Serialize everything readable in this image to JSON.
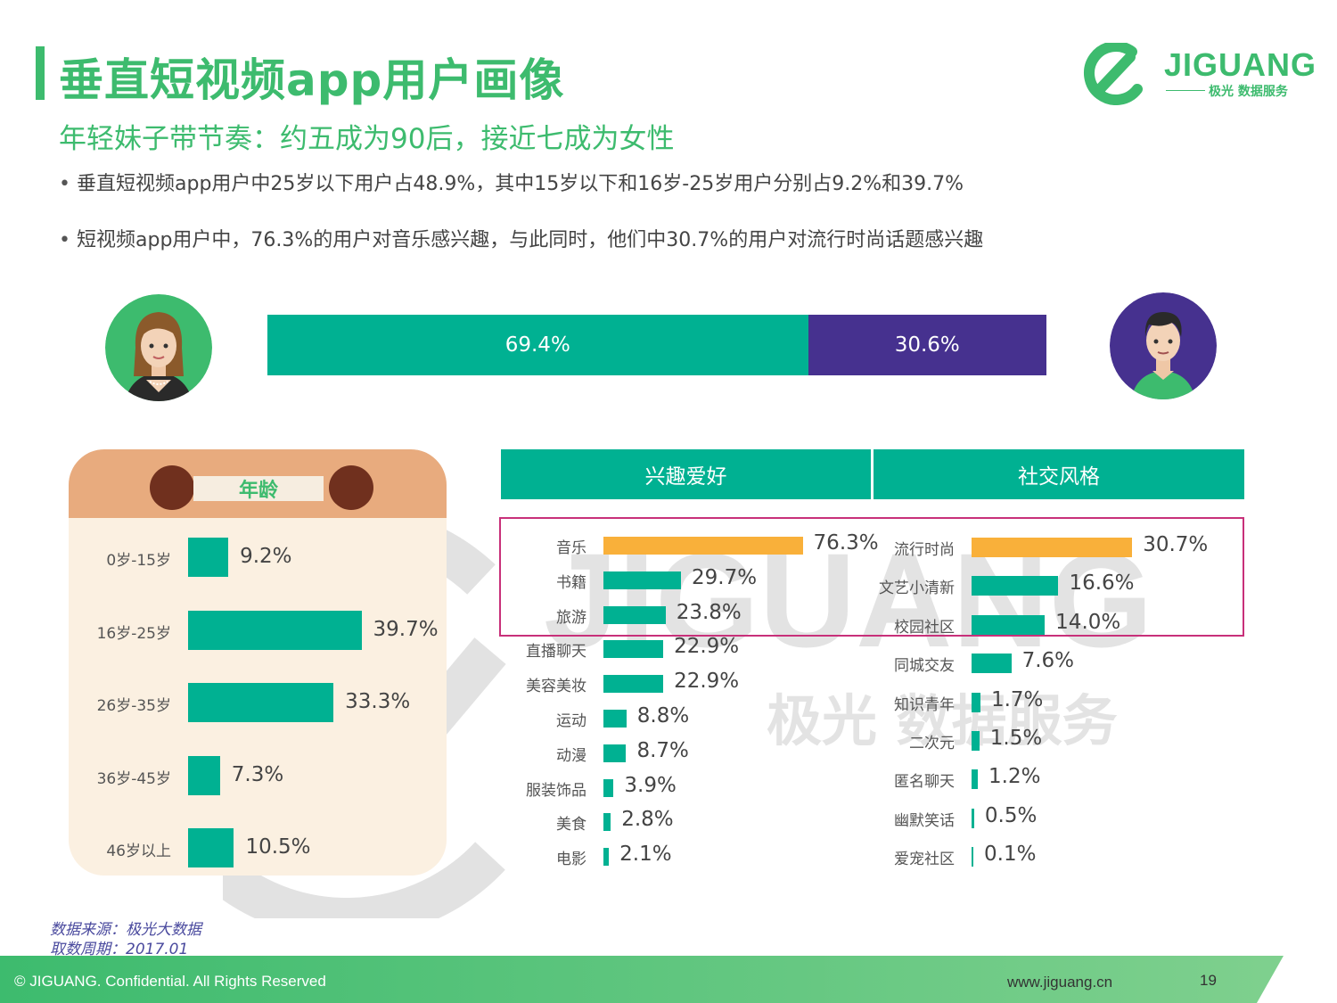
{
  "header": {
    "title": "垂直短视频app用户画像",
    "subtitle": "年轻妹子带节奏：约五成为90后，接近七成为女性",
    "bullets": [
      "垂直短视频app用户中25岁以下用户占48.9%，其中15岁以下和16岁-25岁用户分别占9.2%和39.7%",
      "短视频app用户中，76.3%的用户对音乐感兴趣，与此同时，他们中30.7%的用户对流行时尚话题感兴趣"
    ]
  },
  "logo": {
    "name": "JIGUANG",
    "sub": "极光 数据服务",
    "watermark_name": "JIGUANG",
    "watermark_sub": "极光 数据服务"
  },
  "colors": {
    "brand_green": "#3dbb6e",
    "teal": "#00b192",
    "purple": "#46318f",
    "orange": "#f9b03a",
    "highlight_border": "#c8307a"
  },
  "chart_data": [
    {
      "type": "bar",
      "orientation": "horizontal-stacked",
      "categories": [
        "女性",
        "男性"
      ],
      "values": [
        69.4,
        30.6
      ],
      "value_labels": [
        "69.4%",
        "30.6%"
      ],
      "icons": [
        "female-avatar-icon",
        "male-avatar-icon"
      ]
    },
    {
      "type": "bar",
      "orientation": "horizontal",
      "title": "年龄",
      "categories": [
        "0岁-15岁",
        "16岁-25岁",
        "26岁-35岁",
        "36岁-45岁",
        "46岁以上"
      ],
      "values": [
        9.2,
        39.7,
        33.3,
        7.3,
        10.5
      ],
      "value_labels": [
        "9.2%",
        "39.7%",
        "33.3%",
        "7.3%",
        "10.5%"
      ]
    },
    {
      "type": "bar",
      "orientation": "horizontal",
      "title": "兴趣爱好",
      "categories": [
        "音乐",
        "书籍",
        "旅游",
        "直播聊天",
        "美容美妆",
        "运动",
        "动漫",
        "服装饰品",
        "美食",
        "电影"
      ],
      "values": [
        76.3,
        29.7,
        23.8,
        22.9,
        22.9,
        8.8,
        8.7,
        3.9,
        2.8,
        2.1
      ],
      "value_labels": [
        "76.3%",
        "29.7%",
        "23.8%",
        "22.9%",
        "22.9%",
        "8.8%",
        "8.7%",
        "3.9%",
        "2.8%",
        "2.1%"
      ],
      "highlighted": [
        "音乐"
      ]
    },
    {
      "type": "bar",
      "orientation": "horizontal",
      "title": "社交风格",
      "categories": [
        "流行时尚",
        "文艺小清新",
        "校园社区",
        "同城交友",
        "知识青年",
        "二次元",
        "匿名聊天",
        "幽默笑话",
        "爱宠社区"
      ],
      "values": [
        30.7,
        16.6,
        14.0,
        7.6,
        1.7,
        1.5,
        1.2,
        0.5,
        0.1
      ],
      "value_labels": [
        "30.7%",
        "16.6%",
        "14.0%",
        "7.6%",
        "1.7%",
        "1.5%",
        "1.2%",
        "0.5%",
        "0.1%"
      ],
      "highlighted": [
        "流行时尚"
      ]
    }
  ],
  "source": {
    "line1": "数据来源：极光大数据",
    "line2": "取数周期：2017.01"
  },
  "footer": {
    "copyright": "© JIGUANG. Confidential. All Rights Reserved",
    "url": "www.jiguang.cn",
    "page": "19"
  }
}
